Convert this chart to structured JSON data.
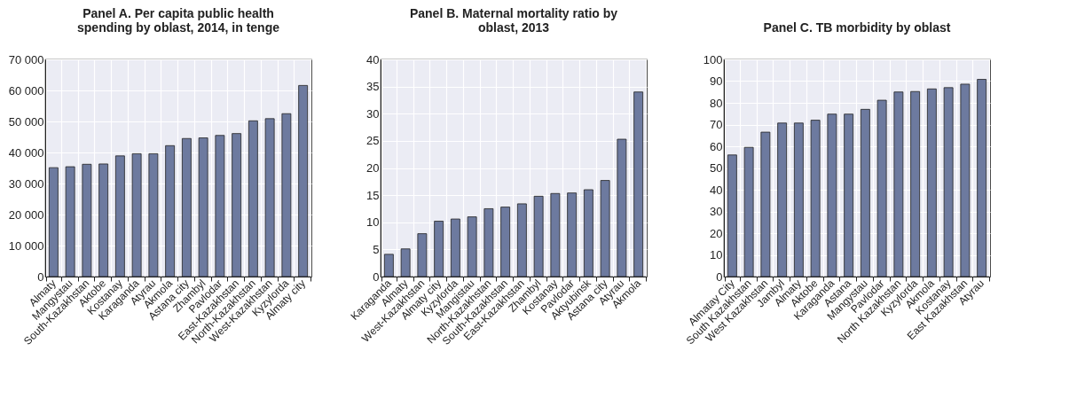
{
  "chart_data": [
    {
      "type": "bar",
      "title": "Panel A. Per capita public health spending by oblast, 2014, in tenge",
      "categories": [
        "Almaty",
        "Mangystau",
        "South-Kazakhstan",
        "Aktobe",
        "Kostanay",
        "Karaganda",
        "Atyrau",
        "Akmola",
        "Astana city",
        "Zhambyl",
        "Pavlodar",
        "East-Kazakhstan",
        "North-Kazakhstan",
        "West-Kazakhstan",
        "Kyzylorda",
        "Almaty city"
      ],
      "values": [
        35100,
        35400,
        36200,
        36300,
        38900,
        39600,
        39600,
        42200,
        44500,
        44700,
        45500,
        46100,
        50200,
        50900,
        52500,
        61600
      ],
      "color": "#6d7a9f",
      "ylim": [
        0,
        70000
      ],
      "yticks": [
        0,
        {
          "value": 10000,
          "label": "10 000"
        },
        {
          "value": 20000,
          "label": "20 000"
        },
        {
          "value": 30000,
          "label": "30 000"
        },
        {
          "value": 40000,
          "label": "40 000"
        },
        {
          "value": 50000,
          "label": "50 000"
        },
        {
          "value": 60000,
          "label": "60 000"
        },
        {
          "value": 70000,
          "label": "70 000"
        }
      ],
      "grid": true
    },
    {
      "type": "bar",
      "title": "Panel B. Maternal mortality ratio by oblast, 2013",
      "categories": [
        "Karaganda",
        "Almaty",
        "West-Kazakhstan",
        "Almaty city",
        "Kyzylorda",
        "Mangistau",
        "North-Kazakhstan",
        "South-Kazakhstan",
        "East-Kazakhstan",
        "Zhambyl",
        "Kostanay",
        "Pavlodar",
        "Aktyubinsk",
        "Astana city",
        "Atyrau",
        "Akmola"
      ],
      "values": [
        4.1,
        5.1,
        7.9,
        10.2,
        10.6,
        11.0,
        12.5,
        12.8,
        13.4,
        14.8,
        15.3,
        15.4,
        16.0,
        17.7,
        25.3,
        34.0
      ],
      "color": "#6d7a9f",
      "ylim": [
        0,
        40
      ],
      "yticks": [
        0,
        5,
        10,
        15,
        20,
        25,
        30,
        35,
        40
      ],
      "grid": true
    },
    {
      "type": "bar",
      "title": "Panel C. TB morbidity by oblast",
      "categories": [
        "Almatay City",
        "South Kazakhstan",
        "West Kazakhstan",
        "Jambyl",
        "Almaty",
        "Aktobe",
        "Karaganda",
        "Astana",
        "Mangystau",
        "Pavlodar",
        "North Kazakhstan",
        "Kyzylorda",
        "Akmola",
        "Kostanay",
        "East Kazakhstan",
        "Atyrau"
      ],
      "values": [
        56,
        59.5,
        66.5,
        70.7,
        70.7,
        72,
        74.8,
        74.8,
        77,
        81.2,
        85,
        85.2,
        86.4,
        87,
        88.6,
        90.8
      ],
      "color": "#6d7a9f",
      "ylim": [
        0,
        100
      ],
      "yticks": [
        0,
        10,
        20,
        30,
        40,
        50,
        60,
        70,
        80,
        90,
        100
      ],
      "grid": true
    }
  ]
}
